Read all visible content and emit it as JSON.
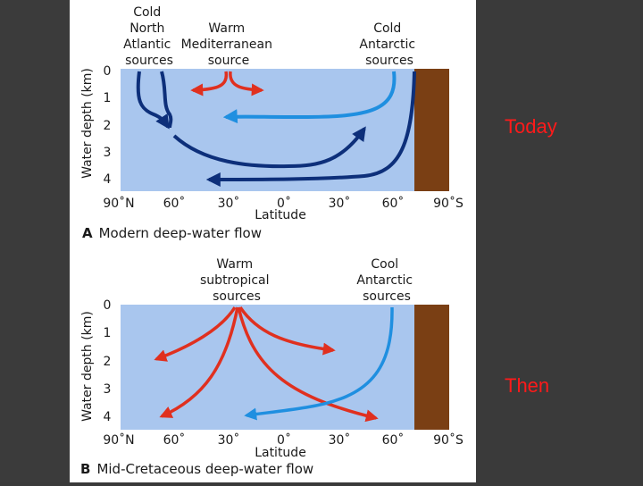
{
  "slide": {
    "label_top": "Today",
    "label_bottom": "Then",
    "colors": {
      "background": "#3a3a3a",
      "label": "#ff1a1a",
      "ocean": "#a9c6ee",
      "land": "#7a3f14",
      "cold_flow": "#0d2f7a",
      "cool_flow": "#1f8fe0",
      "warm_flow": "#e0301f"
    }
  },
  "panel_a": {
    "title_letter": "A",
    "title": "Modern deep-water flow",
    "y_axis_label": "Water depth (km)",
    "x_axis_label": "Latitude",
    "depth_ticks": [
      "0",
      "1",
      "2",
      "3",
      "4"
    ],
    "latitude_ticks": [
      "90˚N",
      "60˚",
      "30˚",
      "0˚",
      "30˚",
      "60˚",
      "90˚S"
    ],
    "source_labels": {
      "north_atlantic": [
        "Cold",
        "North",
        "Atlantic",
        "sources"
      ],
      "mediterranean": [
        "Warm",
        "Mediterranean",
        "source"
      ],
      "antarctic": [
        "Cold",
        "Antarctic",
        "sources"
      ]
    }
  },
  "panel_b": {
    "title_letter": "B",
    "title": "Mid-Cretaceous deep-water flow",
    "y_axis_label": "Water depth (km)",
    "x_axis_label": "Latitude",
    "depth_ticks": [
      "0",
      "1",
      "2",
      "3",
      "4"
    ],
    "latitude_ticks": [
      "90˚N",
      "60˚",
      "30˚",
      "0˚",
      "30˚",
      "60˚",
      "90˚S"
    ],
    "source_labels": {
      "subtropical": [
        "Warm",
        "subtropical",
        "sources"
      ],
      "antarctic": [
        "Cool",
        "Antarctic",
        "sources"
      ]
    }
  }
}
